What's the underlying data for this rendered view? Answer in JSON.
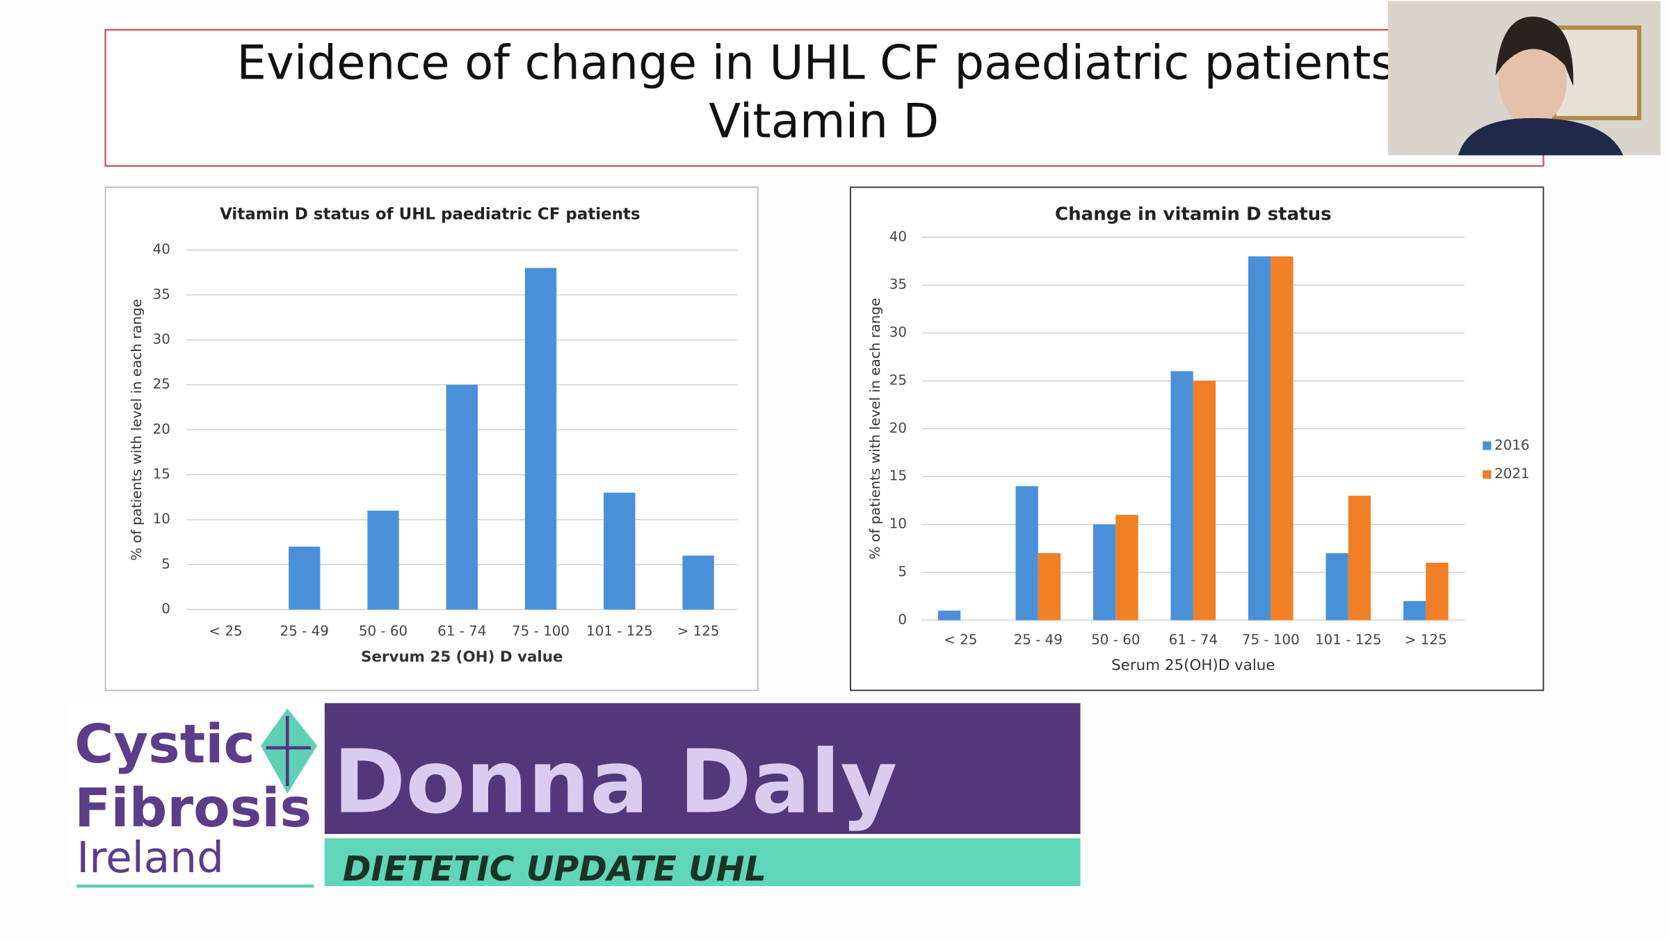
{
  "slide": {
    "title_lines": [
      "Evidence of change in UHL CF paediatric patients:",
      "Vitamin D"
    ]
  },
  "chart_data": [
    {
      "type": "bar",
      "title": "Vitamin D status of UHL paediatric CF patients",
      "y_label": "% of patients with level in each range",
      "x_label": "Servum 25 (OH) D value",
      "categories": [
        "< 25",
        "25 - 49",
        "50 - 60",
        "61 - 74",
        "75 - 100",
        "101 - 125",
        "> 125"
      ],
      "values": [
        0,
        7,
        11,
        25,
        38,
        13,
        6
      ],
      "color": "#4a90d9",
      "ylim": [
        0,
        40
      ],
      "yticks": [
        0,
        5,
        10,
        15,
        20,
        25,
        30,
        35,
        40
      ],
      "grid": true
    },
    {
      "type": "bar",
      "title": "Change in vitamin D status",
      "y_label": "% of patients with level in each range",
      "x_label": "Serum 25(OH)D value",
      "categories": [
        "< 25",
        "25 - 49",
        "50 - 60",
        "61 - 74",
        "75 - 100",
        "101 - 125",
        "> 125"
      ],
      "series": [
        {
          "name": "2016",
          "color": "#4a90d9",
          "values": [
            1,
            14,
            10,
            26,
            38,
            7,
            2
          ]
        },
        {
          "name": "2021",
          "color": "#f07f26",
          "values": [
            0,
            7,
            11,
            25,
            38,
            13,
            6
          ]
        }
      ],
      "ylim": [
        0,
        40
      ],
      "yticks": [
        0,
        5,
        10,
        15,
        20,
        25,
        30,
        35,
        40
      ],
      "grid": true,
      "legend": "right"
    }
  ],
  "logo": {
    "lines": [
      "Cystic",
      "Fibrosis",
      "Ireland"
    ]
  },
  "banner": {
    "name": "Donna Daly",
    "subtitle": "DIETETIC UPDATE UHL"
  }
}
